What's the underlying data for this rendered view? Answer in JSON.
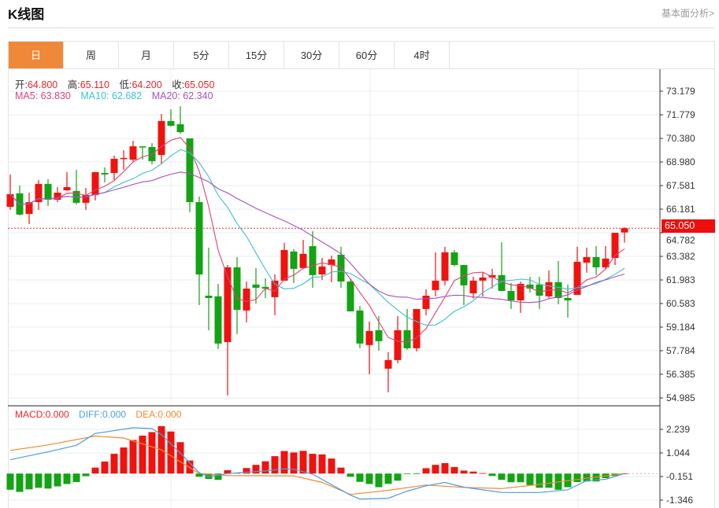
{
  "header": {
    "title": "K线图",
    "more_link": "基本面分析>"
  },
  "tabs": [
    {
      "label": "日",
      "active": true
    },
    {
      "label": "周"
    },
    {
      "label": "月"
    },
    {
      "label": "5分"
    },
    {
      "label": "15分"
    },
    {
      "label": "30分"
    },
    {
      "label": "60分"
    },
    {
      "label": "4时"
    }
  ],
  "ohlc_legend": {
    "open_label": "开:",
    "open": "64.800",
    "high_label": "高:",
    "high": "65.110",
    "low_label": "低:",
    "low": "64.200",
    "close_label": "收:",
    "close": "65.050"
  },
  "ma_legend": {
    "ma5": "MA5: 63.830",
    "ma10": "MA10: 62.682",
    "ma20": "MA20: 62.340"
  },
  "macd_legend": {
    "macd": "MACD:0.000",
    "diff": "DIFF:0.000",
    "dea": "DEA:0.000"
  },
  "current_price_tag": "65.050",
  "colors": {
    "up": "#f0120e",
    "down": "#13a313",
    "ma5": "#e0417a",
    "ma10": "#3cc0d0",
    "ma20": "#a651c0",
    "diff": "#4d9de0",
    "dea": "#f08a30",
    "accent": "#f0883a"
  },
  "chart_data": [
    {
      "type": "candlestick",
      "title": "K线图 日",
      "price_axis_ticks": [
        "73.179",
        "71.779",
        "70.380",
        "68.980",
        "67.581",
        "66.181",
        "64.782",
        "63.382",
        "61.983",
        "60.583",
        "59.184",
        "57.784",
        "56.385",
        "54.985"
      ],
      "ylim": [
        54.985,
        73.179
      ],
      "current_price": 65.05,
      "ohlc": [
        [
          66.32,
          68.24,
          66.14,
          67.07
        ],
        [
          67.12,
          67.58,
          65.81,
          65.86
        ],
        [
          65.9,
          67.16,
          65.3,
          66.6
        ],
        [
          66.6,
          67.91,
          66.14,
          67.68
        ],
        [
          67.68,
          67.96,
          66.37,
          66.74
        ],
        [
          66.74,
          67.49,
          66.6,
          67.16
        ],
        [
          67.3,
          68.38,
          67.26,
          67.49
        ],
        [
          67.26,
          68.52,
          66.46,
          66.56
        ],
        [
          66.56,
          67.44,
          66.14,
          67.02
        ],
        [
          67.02,
          68.38,
          66.7,
          68.38
        ],
        [
          68.33,
          68.66,
          67.77,
          68.24
        ],
        [
          68.33,
          69.36,
          67.91,
          69.17
        ],
        [
          69.17,
          69.68,
          68.52,
          69.22
        ],
        [
          69.12,
          70.24,
          68.98,
          69.91
        ],
        [
          69.91,
          69.91,
          69.12,
          69.87
        ],
        [
          69.87,
          70.1,
          68.84,
          69.03
        ],
        [
          69.4,
          71.83,
          68.84,
          71.41
        ],
        [
          71.41,
          72.11,
          71.08,
          71.13
        ],
        [
          71.22,
          72.29,
          70.66,
          70.75
        ],
        [
          70.38,
          70.38,
          66.0,
          66.6
        ],
        [
          66.6,
          66.93,
          60.49,
          62.31
        ],
        [
          61.05,
          63.9,
          59.0,
          60.91
        ],
        [
          61.01,
          61.75,
          57.88,
          58.21
        ],
        [
          58.3,
          62.87,
          55.13,
          62.73
        ],
        [
          62.73,
          63.34,
          58.77,
          60.21
        ],
        [
          60.17,
          61.89,
          59.47,
          61.47
        ],
        [
          61.71,
          62.69,
          60.59,
          61.52
        ],
        [
          61.57,
          62.08,
          60.91,
          61.47
        ],
        [
          60.96,
          62.31,
          59.89,
          61.94
        ],
        [
          61.94,
          64.18,
          61.94,
          63.76
        ],
        [
          63.67,
          63.81,
          61.8,
          62.64
        ],
        [
          62.69,
          64.36,
          62.69,
          63.53
        ],
        [
          63.99,
          64.88,
          61.52,
          62.27
        ],
        [
          62.31,
          63.29,
          61.99,
          62.78
        ],
        [
          62.87,
          63.43,
          61.85,
          63.2
        ],
        [
          63.48,
          63.95,
          61.52,
          61.89
        ],
        [
          61.89,
          62.03,
          60.12,
          60.12
        ],
        [
          60.17,
          60.45,
          57.93,
          58.21
        ],
        [
          58.12,
          59.51,
          56.39,
          58.95
        ],
        [
          59.0,
          59.84,
          57.79,
          58.35
        ],
        [
          56.72,
          57.7,
          55.32,
          57.23
        ],
        [
          57.23,
          59.84,
          57.04,
          59.0
        ],
        [
          59.0,
          60.26,
          57.84,
          57.93
        ],
        [
          57.93,
          60.26,
          57.74,
          60.26
        ],
        [
          60.26,
          61.43,
          59.89,
          61.05
        ],
        [
          61.38,
          63.62,
          61.01,
          61.94
        ],
        [
          61.94,
          63.95,
          61.66,
          63.62
        ],
        [
          63.62,
          63.76,
          62.78,
          62.87
        ],
        [
          62.87,
          62.87,
          60.49,
          61.66
        ],
        [
          61.19,
          62.17,
          60.87,
          61.94
        ],
        [
          61.94,
          62.45,
          61.01,
          62.13
        ],
        [
          62.13,
          62.64,
          61.47,
          62.27
        ],
        [
          62.27,
          64.22,
          61.33,
          61.33
        ],
        [
          61.33,
          61.8,
          60.26,
          60.77
        ],
        [
          60.77,
          61.89,
          60.03,
          61.75
        ],
        [
          61.71,
          62.17,
          61.24,
          61.47
        ],
        [
          61.71,
          62.17,
          60.26,
          61.05
        ],
        [
          61.01,
          62.55,
          60.91,
          61.85
        ],
        [
          61.85,
          63.11,
          60.54,
          60.91
        ],
        [
          60.91,
          61.71,
          59.75,
          60.77
        ],
        [
          61.1,
          63.95,
          61.1,
          63.06
        ],
        [
          63.01,
          63.9,
          62.41,
          63.34
        ],
        [
          63.34,
          63.99,
          62.27,
          62.73
        ],
        [
          62.73,
          63.99,
          62.59,
          63.25
        ],
        [
          63.29,
          64.78,
          62.87,
          64.78
        ],
        [
          64.8,
          65.11,
          64.2,
          65.05
        ]
      ],
      "ma_periods": [
        5,
        10,
        20
      ]
    },
    {
      "type": "bar+line",
      "title": "MACD",
      "axis_ticks": [
        "2.239",
        "1.044",
        "-0.151",
        "-1.346"
      ],
      "ylim": [
        -1.6,
        2.7
      ],
      "histogram": [
        -0.82,
        -0.93,
        -0.8,
        -0.72,
        -0.76,
        -0.65,
        -0.53,
        -0.43,
        -0.13,
        0.3,
        0.61,
        1.0,
        1.32,
        1.7,
        1.92,
        2.1,
        2.4,
        2.13,
        1.59,
        0.66,
        -0.16,
        -0.27,
        -0.32,
        0.17,
        0.04,
        0.28,
        0.44,
        0.62,
        0.88,
        1.14,
        1.07,
        1.15,
        1.0,
        0.97,
        0.76,
        0.3,
        -0.16,
        -0.42,
        -0.53,
        -0.69,
        -0.52,
        -0.36,
        -0.03,
        -0.02,
        0.27,
        0.44,
        0.53,
        0.33,
        0.15,
        0.1,
        0.02,
        -0.12,
        -0.32,
        -0.44,
        -0.44,
        -0.58,
        -0.72,
        -0.72,
        -0.82,
        -0.69,
        -0.43,
        -0.4,
        -0.4,
        -0.23,
        -0.12,
        0.0
      ],
      "diff_points": [
        [
          0,
          0.7
        ],
        [
          4,
          1.1
        ],
        [
          7,
          1.43
        ],
        [
          9,
          2.03
        ],
        [
          13,
          2.32
        ],
        [
          15,
          2.28
        ],
        [
          16,
          1.97
        ],
        [
          18,
          1.04
        ],
        [
          20,
          0.04
        ],
        [
          21,
          -0.16
        ],
        [
          23,
          0.0
        ],
        [
          27,
          0.13
        ],
        [
          29,
          0.24
        ],
        [
          30,
          0.22
        ],
        [
          32,
          -0.03
        ],
        [
          34,
          -0.56
        ],
        [
          36,
          -1.09
        ],
        [
          37,
          -1.29
        ],
        [
          40,
          -1.25
        ],
        [
          42,
          -0.89
        ],
        [
          44,
          -0.62
        ],
        [
          46,
          -0.45
        ],
        [
          48,
          -0.69
        ],
        [
          52,
          -0.96
        ],
        [
          56,
          -0.96
        ],
        [
          59,
          -0.82
        ],
        [
          61,
          -0.36
        ],
        [
          63,
          -0.29
        ],
        [
          65,
          0.0
        ]
      ],
      "dea_points": [
        [
          0,
          1.17
        ],
        [
          4,
          1.45
        ],
        [
          9,
          1.9
        ],
        [
          12,
          1.8
        ],
        [
          16,
          1.2
        ],
        [
          20,
          0.0
        ],
        [
          23,
          -0.1
        ],
        [
          30,
          -0.12
        ],
        [
          33,
          -0.45
        ],
        [
          36,
          -1.06
        ],
        [
          40,
          -0.85
        ],
        [
          44,
          -0.58
        ],
        [
          48,
          -0.7
        ],
        [
          52,
          -0.76
        ],
        [
          56,
          -0.55
        ],
        [
          60,
          -0.3
        ],
        [
          65,
          0.0
        ]
      ]
    }
  ]
}
